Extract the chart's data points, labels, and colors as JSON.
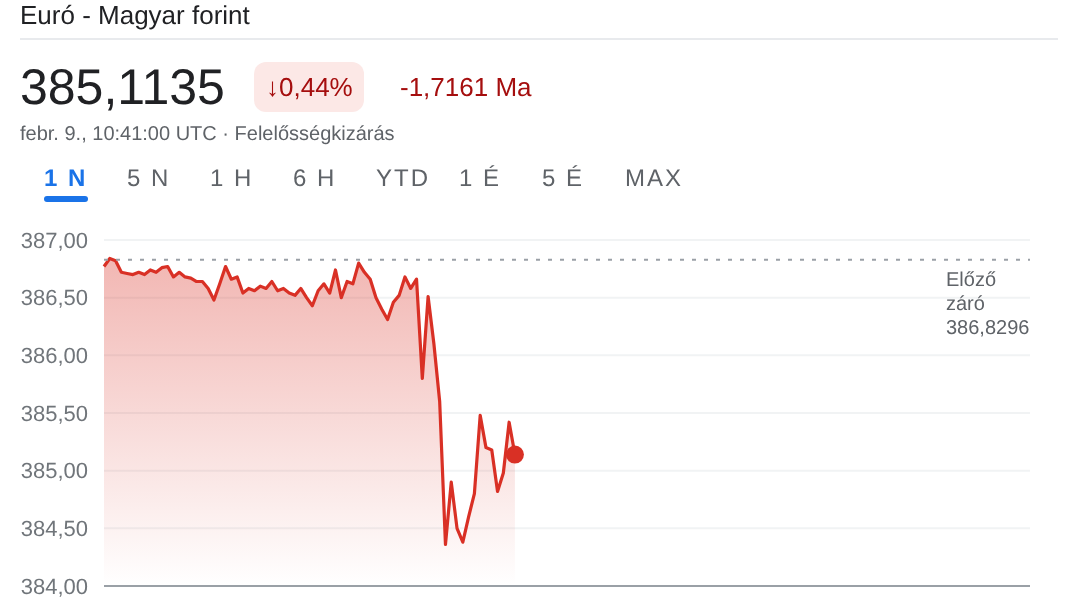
{
  "chart_data": {
    "type": "area",
    "title": "Euró - Magyar forint",
    "annotations": [
      "385,1135",
      "↓0,44%",
      "-1,7161 Ma",
      "febr. 9., 10:41:00 UTC · Felelősségkizárás",
      "1 N",
      "5 N",
      "1 H",
      "6 H",
      "YTD",
      "1 É",
      "5 É",
      "MAX"
    ],
    "categories": [
      null,
      null,
      null,
      null,
      null,
      null,
      null,
      null,
      null,
      null,
      null,
      null,
      null,
      null,
      null,
      null,
      null,
      null,
      null,
      null,
      null,
      null,
      null,
      null,
      null,
      null,
      null,
      null,
      null,
      null,
      null,
      null,
      null,
      null,
      null,
      null,
      null,
      null,
      null,
      null,
      null,
      null,
      null,
      null,
      null,
      null,
      null,
      null,
      null,
      null,
      null,
      null,
      null,
      null,
      null,
      null,
      null,
      null,
      null,
      null,
      null,
      null,
      null,
      null,
      null,
      null,
      null,
      null,
      null,
      null,
      null,
      null,
      null,
      null,
      null,
      null,
      null,
      null,
      null,
      null,
      null,
      null,
      null,
      null,
      null,
      null,
      null,
      null,
      null,
      null,
      null,
      null,
      null,
      null,
      null,
      null,
      null,
      null,
      null,
      null,
      null,
      null,
      null,
      null,
      null,
      null,
      null,
      null,
      null,
      null,
      null,
      null,
      null,
      null,
      null,
      null,
      null,
      null,
      null,
      null,
      null,
      null,
      null,
      null,
      null,
      null,
      null,
      null,
      null,
      null,
      null,
      null,
      null,
      null,
      null,
      null,
      null,
      null,
      null,
      null,
      null,
      null,
      null,
      null,
      null,
      null,
      null,
      null,
      null,
      null,
      null,
      null,
      null,
      null,
      null,
      null,
      null,
      null,
      null,
      null,
      null
    ],
    "series": [
      {
        "color": "#d93025",
        "values": [
          386.77,
          386.84,
          386.82,
          386.72,
          386.71,
          386.7,
          386.72,
          386.7,
          386.74,
          386.72,
          386.76,
          386.77,
          386.68,
          386.72,
          386.68,
          386.67,
          386.64,
          386.64,
          386.58,
          386.48,
          386.62,
          386.77,
          386.66,
          386.68,
          386.54,
          386.58,
          386.56,
          386.6,
          386.58,
          386.64,
          386.56,
          386.58,
          386.54,
          386.52,
          386.58,
          386.5,
          386.43,
          386.56,
          386.62,
          386.54,
          386.74,
          386.5,
          386.64,
          386.62,
          386.8,
          386.72,
          386.66,
          386.5,
          386.4,
          386.31,
          386.46,
          386.52,
          386.68,
          386.58,
          386.66,
          385.8,
          386.51,
          386.1,
          385.6,
          384.36,
          384.9,
          384.5,
          384.38,
          384.6,
          384.8,
          385.48,
          385.2,
          385.18,
          384.82,
          384.98,
          385.42,
          385.14,
          null,
          null,
          null,
          null,
          null,
          null,
          null,
          null,
          null,
          null,
          null,
          null,
          null,
          null,
          null,
          null,
          null,
          null,
          null,
          null,
          null,
          null,
          null,
          null,
          null,
          null,
          null,
          null,
          null,
          null,
          null,
          null,
          null,
          null,
          null,
          null,
          null,
          null,
          null,
          null,
          null,
          null,
          null,
          null,
          null,
          null,
          null,
          null,
          null,
          null,
          null,
          null,
          null,
          null,
          null,
          null,
          null,
          null,
          null,
          null,
          null,
          null,
          null,
          null,
          null,
          null,
          null,
          null,
          null,
          null,
          null,
          null,
          null,
          null,
          null,
          null,
          null,
          null,
          null,
          null,
          null,
          null,
          null,
          null,
          null,
          null,
          null,
          null,
          null
        ]
      }
    ],
    "ylim": [
      384,
      387
    ],
    "yticks": [
      {
        "value": 384,
        "label": "384,00"
      },
      {
        "value": 384.5,
        "label": "384,50"
      },
      {
        "value": 385,
        "label": "385,00"
      },
      {
        "value": 385.5,
        "label": "385,50"
      },
      {
        "value": 386,
        "label": "386,00"
      },
      {
        "value": 386.5,
        "label": "386,50"
      },
      {
        "value": 387,
        "label": "387,00"
      }
    ],
    "grid": "y",
    "tick_labels": "y",
    "ref_lines": [
      {
        "axis": "y",
        "value": 386.8296,
        "label": "Előző záró 386,8296",
        "color": "#9aa0a6",
        "line_style": "dotted"
      }
    ]
  }
}
